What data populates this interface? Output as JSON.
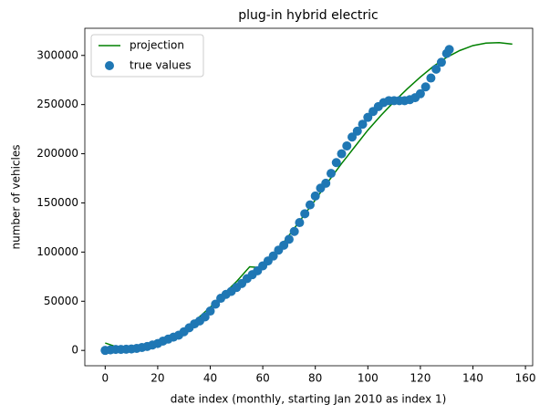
{
  "chart_data": {
    "type": "line",
    "title": "plug-in hybrid electric",
    "x_label": "date index (monthly, starting Jan 2010 as index 1)",
    "y_label": "number of vehicles",
    "xlim": [
      -7.75,
      162.75
    ],
    "ylim": [
      -15600,
      327600
    ],
    "xticks": [
      0,
      20,
      40,
      60,
      80,
      100,
      120,
      140,
      160
    ],
    "yticks": [
      0,
      50000,
      100000,
      150000,
      200000,
      250000,
      300000
    ],
    "grid": false,
    "legend": "upper-left",
    "series": [
      {
        "name": "projection",
        "type": "line",
        "color": "#008000",
        "x": [
          0,
          5,
          10,
          15,
          20,
          25,
          30,
          35,
          40,
          45,
          50,
          55,
          60,
          65,
          70,
          75,
          80,
          85,
          90,
          95,
          100,
          105,
          110,
          115,
          120,
          125,
          130,
          135,
          140,
          145,
          150,
          155
        ],
        "values": [
          7500,
          3000,
          2000,
          4000,
          8000,
          14000,
          22000,
          32000,
          44000,
          57000,
          70000,
          85000,
          84000,
          100000,
          117000,
          135000,
          153000,
          172000,
          190000,
          207000,
          224000,
          239000,
          253000,
          266000,
          278000,
          289000,
          298000,
          305000,
          310000,
          312500,
          313000,
          311500
        ]
      },
      {
        "name": "true values",
        "type": "scatter",
        "color": "#1f77b4",
        "x": [
          0,
          2,
          4,
          6,
          8,
          10,
          12,
          14,
          16,
          18,
          20,
          22,
          24,
          26,
          28,
          30,
          32,
          34,
          36,
          38,
          40,
          42,
          44,
          46,
          48,
          50,
          52,
          54,
          56,
          58,
          60,
          62,
          64,
          66,
          68,
          70,
          72,
          74,
          76,
          78,
          80,
          82,
          84,
          86,
          88,
          90,
          92,
          94,
          96,
          98,
          100,
          102,
          104,
          106,
          108,
          110,
          112,
          114,
          116,
          118,
          120,
          122,
          124,
          126,
          128,
          130,
          131
        ],
        "values": [
          0,
          500,
          1000,
          1000,
          1200,
          1500,
          2000,
          3000,
          4000,
          5500,
          7000,
          9500,
          11500,
          13500,
          15500,
          19000,
          23000,
          27000,
          30000,
          34000,
          40000,
          47000,
          53000,
          57000,
          60000,
          64000,
          68000,
          73000,
          77000,
          81000,
          86000,
          91000,
          96000,
          102000,
          107000,
          113000,
          121000,
          130000,
          139000,
          148000,
          157000,
          165000,
          170000,
          180000,
          191000,
          200000,
          208000,
          217000,
          223000,
          230000,
          237000,
          243000,
          248000,
          252000,
          254000,
          254000,
          254000,
          254000,
          255000,
          257000,
          261000,
          268000,
          277000,
          286000,
          293000,
          302000,
          306000
        ]
      }
    ]
  }
}
